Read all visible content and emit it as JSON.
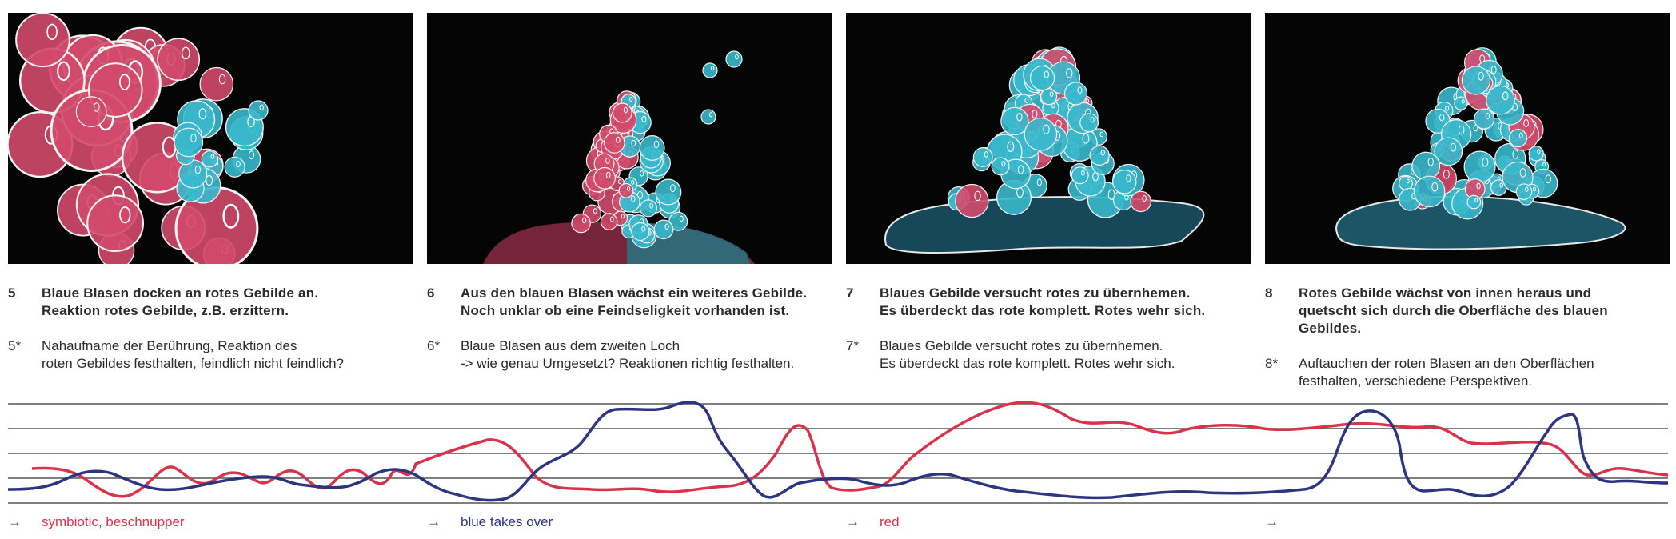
{
  "colors": {
    "red": "#d8334a",
    "blue": "#2b3580",
    "cyan": "#38b8cc",
    "pink": "#d24a6c",
    "panel_bg": "#050505",
    "grid": "#555555"
  },
  "scenes": [
    {
      "number": "5",
      "title": "Blaue Blasen docken an rotes Gebilde an.\nReaktion rotes Gebilde, z.B. erzittern.",
      "note_number": "5*",
      "note": "Nahaufname der Berührung, Reaktion des\nroten Gebildes festhalten, feindlich nicht feindlich?",
      "legend_arrow": "→",
      "legend_label": "symbiotic, beschnupper",
      "legend_color": "#d8334a"
    },
    {
      "number": "6",
      "title": "Aus den blauen Blasen wächst ein weiteres Gebilde.\nNoch unklar ob eine Feindseligkeit vorhanden ist.",
      "note_number": "6*",
      "note": "Blaue Blasen aus dem zweiten Loch\n-> wie genau Umgesetzt? Reaktionen richtig festhalten.",
      "legend_arrow": "→",
      "legend_label": "blue takes over",
      "legend_color": "#2b3580"
    },
    {
      "number": "7",
      "title": "Blaues Gebilde versucht rotes zu übernhemen.\nEs überdeckt das rote komplett. Rotes wehr sich.",
      "note_number": "7*",
      "note": "Blaues Gebilde versucht rotes zu übernhemen.\nEs überdeckt das rote komplett. Rotes wehr sich.",
      "legend_arrow": "→",
      "legend_label": "red",
      "legend_color": "#d8334a"
    },
    {
      "number": "8",
      "title": "Rotes Gebilde wächst von innen heraus und\nquetscht sich durch die Oberfläche des blauen\nGebildes.",
      "note_number": "8*",
      "note": "Auftauchen der roten Blasen an den Oberflächen\nfesthalten, verschiedene Perspektiven.",
      "legend_arrow": "→",
      "legend_label": "",
      "legend_color": "#2b3580"
    }
  ]
}
